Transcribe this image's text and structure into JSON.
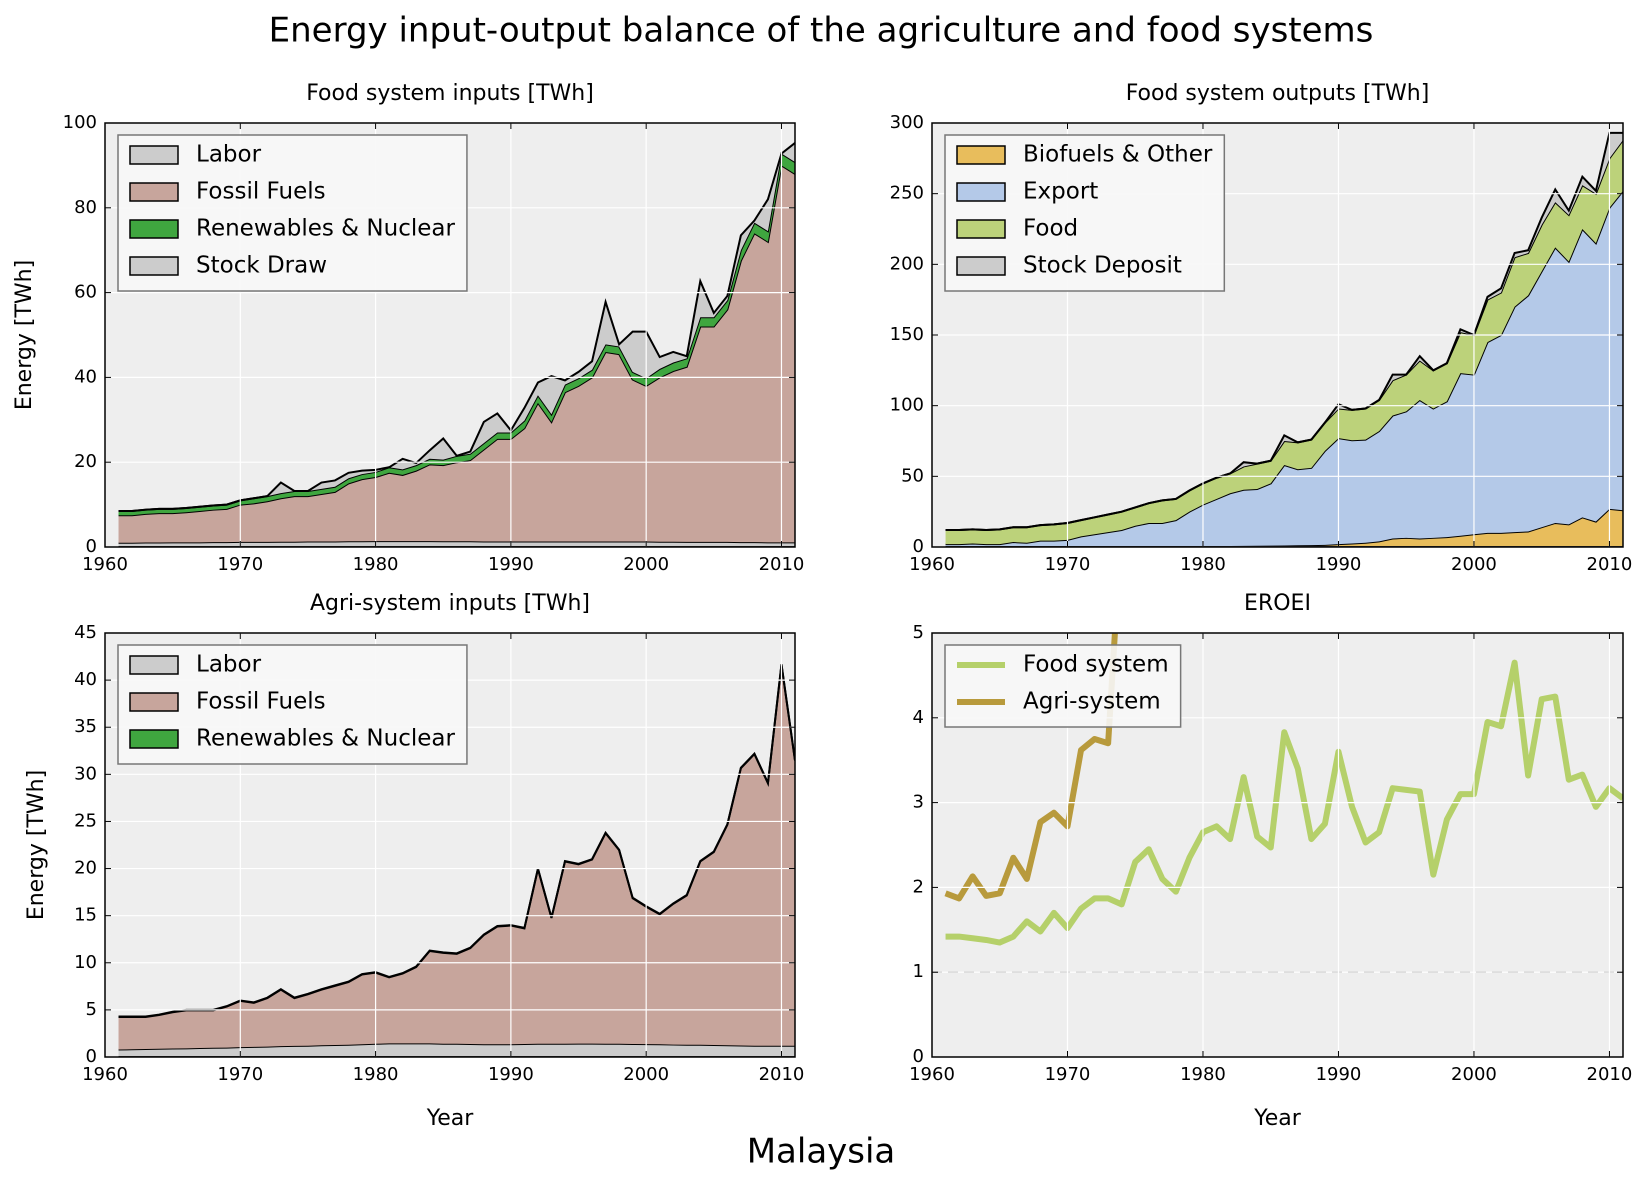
{
  "title": "Energy input-output balance of the agriculture and food systems",
  "country": "Malaysia",
  "chart_data": [
    {
      "type": "area",
      "title": "Food system inputs [TWh]",
      "ylabel": "Energy [TWh]",
      "legend": "upper left",
      "grid": true,
      "x": [
        1961,
        1962,
        1963,
        1964,
        1965,
        1966,
        1967,
        1968,
        1969,
        1970,
        1971,
        1972,
        1973,
        1974,
        1975,
        1976,
        1977,
        1978,
        1979,
        1980,
        1981,
        1982,
        1983,
        1984,
        1985,
        1986,
        1987,
        1988,
        1989,
        1990,
        1991,
        1992,
        1993,
        1994,
        1995,
        1996,
        1997,
        1998,
        1999,
        2000,
        2001,
        2002,
        2003,
        2004,
        2005,
        2006,
        2007,
        2008,
        2009,
        2010,
        2011
      ],
      "xlim": [
        1960,
        2011
      ],
      "xticks": [
        1960,
        1970,
        1980,
        1990,
        2000,
        2010
      ],
      "ylim": [
        0,
        100
      ],
      "yticks": [
        0,
        20,
        40,
        60,
        80,
        100
      ],
      "series": [
        {
          "name": "Labor",
          "color": "#cccccc",
          "values": [
            1.0,
            1.0,
            1.05,
            1.05,
            1.1,
            1.1,
            1.1,
            1.15,
            1.15,
            1.2,
            1.2,
            1.2,
            1.25,
            1.25,
            1.3,
            1.3,
            1.3,
            1.35,
            1.35,
            1.4,
            1.4,
            1.4,
            1.4,
            1.4,
            1.35,
            1.35,
            1.35,
            1.3,
            1.3,
            1.3,
            1.3,
            1.3,
            1.3,
            1.3,
            1.3,
            1.3,
            1.3,
            1.3,
            1.3,
            1.3,
            1.25,
            1.25,
            1.2,
            1.2,
            1.2,
            1.2,
            1.15,
            1.15,
            1.1,
            1.1,
            1.1
          ]
        },
        {
          "name": "Fossil Fuels",
          "color": "#c7a59c",
          "values": [
            6.5,
            6.5,
            6.75,
            6.95,
            6.9,
            7.1,
            7.4,
            7.65,
            7.85,
            8.8,
            9.1,
            9.6,
            10.25,
            10.75,
            10.7,
            11.2,
            11.7,
            13.65,
            14.65,
            15.1,
            16.1,
            15.6,
            16.6,
            18.1,
            17.95,
            18.65,
            19.15,
            21.7,
            24.2,
            24.2,
            26.7,
            32.7,
            28.2,
            35.2,
            36.7,
            38.7,
            44.7,
            44.2,
            38.2,
            36.7,
            38.75,
            40.25,
            41.3,
            50.8,
            50.8,
            54.8,
            66.35,
            72.85,
            70.9,
            88.9,
            86.9
          ]
        },
        {
          "name": "Renewables & Nuclear",
          "color": "#3fa63f",
          "values": [
            1,
            1,
            1,
            1,
            1,
            1,
            1,
            1,
            1,
            1,
            1.2,
            1.2,
            1.2,
            1.2,
            1.2,
            1.2,
            1.2,
            1.2,
            1.2,
            1.2,
            1.3,
            1.3,
            1.3,
            1.3,
            1.3,
            1.5,
            1.5,
            1.5,
            1.5,
            1.5,
            1.8,
            1.8,
            1.8,
            1.8,
            1.8,
            1.8,
            1.8,
            1.8,
            1.8,
            1.8,
            2,
            2,
            2,
            2.2,
            2.2,
            2.2,
            2.5,
            2.5,
            2.5,
            2.8,
            2.8
          ]
        },
        {
          "name": "Stock Draw",
          "color": "#cccccc",
          "values": [
            0,
            0,
            0,
            0,
            0,
            0,
            0,
            0,
            0,
            0,
            0,
            0,
            2.5,
            0,
            0,
            1.5,
            1.5,
            1.3,
            0.8,
            0.5,
            0,
            2.5,
            0.5,
            2,
            5,
            0,
            0.5,
            5,
            4.5,
            0.5,
            3,
            3,
            9,
            1,
            1.5,
            2,
            10,
            0.5,
            9.5,
            11,
            2.8,
            2.5,
            0.5,
            8.5,
            1,
            1,
            3.5,
            0.5,
            7.5,
            0,
            4.5
          ]
        }
      ]
    },
    {
      "type": "area",
      "title": "Food system outputs [TWh]",
      "legend": "upper left",
      "grid": true,
      "x": [
        1961,
        1962,
        1963,
        1964,
        1965,
        1966,
        1967,
        1968,
        1969,
        1970,
        1971,
        1972,
        1973,
        1974,
        1975,
        1976,
        1977,
        1978,
        1979,
        1980,
        1981,
        1982,
        1983,
        1984,
        1985,
        1986,
        1987,
        1988,
        1989,
        1990,
        1991,
        1992,
        1993,
        1994,
        1995,
        1996,
        1997,
        1998,
        1999,
        2000,
        2001,
        2002,
        2003,
        2004,
        2005,
        2006,
        2007,
        2008,
        2009,
        2010,
        2011
      ],
      "xlim": [
        1960,
        2011
      ],
      "xticks": [
        1960,
        1970,
        1980,
        1990,
        2000,
        2010
      ],
      "ylim": [
        0,
        300
      ],
      "yticks": [
        0,
        50,
        100,
        150,
        200,
        250,
        300
      ],
      "series": [
        {
          "name": "Biofuels & Other",
          "color": "#e8bd5c",
          "values": [
            0.2,
            0.2,
            0.2,
            0.2,
            0.2,
            0.3,
            0.3,
            0.3,
            0.3,
            0.3,
            0.3,
            0.3,
            0.3,
            0.4,
            0.4,
            0.4,
            0.4,
            0.4,
            0.5,
            0.5,
            0.6,
            0.7,
            0.8,
            0.9,
            1.0,
            1.1,
            1.2,
            1.3,
            1.5,
            2,
            2.5,
            3,
            4,
            6,
            6.5,
            6,
            6.5,
            7,
            8,
            9,
            10,
            10,
            10.5,
            11,
            14,
            17,
            16,
            21,
            18,
            27,
            26
          ]
        },
        {
          "name": "Export",
          "color": "#b4c9e8",
          "values": [
            1.8,
            1.8,
            2.3,
            1.8,
            1.8,
            3.2,
            2.7,
            4.2,
            4.2,
            4.7,
            7.2,
            8.7,
            10.2,
            11.6,
            14.6,
            16.6,
            16.6,
            18.6,
            24.5,
            29.5,
            33.4,
            37.3,
            39.7,
            40.1,
            44,
            56.9,
            53.8,
            54.7,
            66.5,
            75,
            73,
            73,
            78,
            87,
            89.5,
            98,
            91.5,
            96,
            115,
            113,
            135,
            140,
            159.5,
            167,
            181,
            195,
            186,
            204,
            197,
            213,
            226
          ]
        },
        {
          "name": "Food",
          "color": "#bcd27a",
          "values": [
            10,
            10,
            10,
            10,
            10.5,
            10.5,
            11,
            11,
            11.5,
            12,
            11.5,
            12,
            12.5,
            13,
            13,
            14,
            16,
            15,
            15,
            15,
            15,
            14,
            16.5,
            18,
            16,
            17,
            19,
            20,
            20,
            21,
            21.5,
            22,
            22,
            25,
            26,
            28,
            27,
            27,
            29,
            28,
            30,
            30,
            35,
            30,
            33,
            32,
            33,
            31,
            35,
            35,
            36
          ]
        },
        {
          "name": "Stock Deposit",
          "color": "#cccccc",
          "values": [
            0,
            0,
            0,
            0,
            0,
            0,
            0,
            0,
            0,
            0,
            0,
            0,
            0,
            0,
            0,
            0,
            0,
            0,
            0,
            0,
            0,
            0,
            3,
            0,
            0,
            4,
            0,
            0,
            0,
            3,
            0,
            0,
            0,
            4,
            0,
            3,
            0,
            0,
            2,
            0,
            2,
            3,
            3,
            2,
            5,
            9,
            3,
            6,
            2,
            18,
            5
          ]
        }
      ]
    },
    {
      "type": "area",
      "title": "Agri-system inputs [TWh]",
      "ylabel": "Energy [TWh]",
      "xlabel": "Year",
      "legend": "upper left",
      "grid": true,
      "x": [
        1961,
        1962,
        1963,
        1964,
        1965,
        1966,
        1967,
        1968,
        1969,
        1970,
        1971,
        1972,
        1973,
        1974,
        1975,
        1976,
        1977,
        1978,
        1979,
        1980,
        1981,
        1982,
        1983,
        1984,
        1985,
        1986,
        1987,
        1988,
        1989,
        1990,
        1991,
        1992,
        1993,
        1994,
        1995,
        1996,
        1997,
        1998,
        1999,
        2000,
        2001,
        2002,
        2003,
        2004,
        2005,
        2006,
        2007,
        2008,
        2009,
        2010,
        2011
      ],
      "xlim": [
        1960,
        2011
      ],
      "xticks": [
        1960,
        1970,
        1980,
        1990,
        2000,
        2010
      ],
      "ylim": [
        0,
        45
      ],
      "yticks": [
        0,
        5,
        10,
        15,
        20,
        25,
        30,
        35,
        40,
        45
      ],
      "series": [
        {
          "name": "Labor",
          "color": "#cccccc",
          "values": [
            0.8,
            0.82,
            0.85,
            0.88,
            0.9,
            0.92,
            0.95,
            0.98,
            1.0,
            1.05,
            1.08,
            1.1,
            1.15,
            1.18,
            1.2,
            1.25,
            1.28,
            1.3,
            1.35,
            1.4,
            1.45,
            1.45,
            1.45,
            1.45,
            1.4,
            1.4,
            1.38,
            1.35,
            1.35,
            1.35,
            1.38,
            1.4,
            1.4,
            1.4,
            1.42,
            1.42,
            1.4,
            1.4,
            1.38,
            1.36,
            1.35,
            1.32,
            1.3,
            1.3,
            1.28,
            1.25,
            1.22,
            1.2,
            1.2,
            1.2,
            1.2
          ]
        },
        {
          "name": "Fossil Fuels",
          "color": "#c7a59c",
          "values": [
            3.45,
            3.43,
            3.4,
            3.57,
            3.85,
            4.03,
            4.0,
            3.97,
            4.35,
            4.9,
            4.67,
            5.15,
            6.0,
            5.07,
            5.45,
            5.9,
            6.27,
            6.65,
            7.4,
            7.55,
            7.0,
            7.4,
            8.1,
            9.8,
            9.65,
            9.55,
            10.17,
            11.6,
            12.5,
            12.6,
            12.27,
            18.55,
            13.35,
            19.35,
            19.03,
            19.53,
            22.35,
            20.55,
            15.47,
            14.59,
            13.8,
            14.93,
            15.85,
            19.45,
            20.47,
            23.4,
            29.43,
            30.95,
            27.85,
            40.45,
            30.25
          ]
        },
        {
          "name": "Renewables & Nuclear",
          "color": "#3fa63f",
          "values": [
            0.05,
            0.05,
            0.05,
            0.05,
            0.05,
            0.05,
            0.05,
            0.05,
            0.05,
            0.05,
            0.05,
            0.05,
            0.05,
            0.05,
            0.05,
            0.05,
            0.05,
            0.05,
            0.05,
            0.05,
            0.05,
            0.05,
            0.05,
            0.05,
            0.05,
            0.05,
            0.05,
            0.05,
            0.05,
            0.05,
            0.05,
            0.05,
            0.05,
            0.05,
            0.05,
            0.05,
            0.05,
            0.05,
            0.05,
            0.05,
            0.05,
            0.05,
            0.05,
            0.05,
            0.05,
            0.05,
            0.05,
            0.05,
            0.05,
            0.05,
            0.05
          ]
        }
      ]
    },
    {
      "type": "line",
      "title": "EROEI",
      "xlabel": "Year",
      "legend": "upper left",
      "grid": true,
      "hline": 1,
      "x": [
        1961,
        1962,
        1963,
        1964,
        1965,
        1966,
        1967,
        1968,
        1969,
        1970,
        1971,
        1972,
        1973,
        1974,
        1975,
        1976,
        1977,
        1978,
        1979,
        1980,
        1981,
        1982,
        1983,
        1984,
        1985,
        1986,
        1987,
        1988,
        1989,
        1990,
        1991,
        1992,
        1993,
        1994,
        1995,
        1996,
        1997,
        1998,
        1999,
        2000,
        2001,
        2002,
        2003,
        2004,
        2005,
        2006,
        2007,
        2008,
        2009,
        2010,
        2011
      ],
      "xlim": [
        1960,
        2011
      ],
      "xticks": [
        1960,
        1970,
        1980,
        1990,
        2000,
        2010
      ],
      "ylim": [
        0,
        5
      ],
      "yticks": [
        0,
        1,
        2,
        3,
        4,
        5
      ],
      "series": [
        {
          "name": "Food system",
          "color": "#b5d06a",
          "values": [
            1.42,
            1.42,
            1.4,
            1.38,
            1.35,
            1.42,
            1.6,
            1.48,
            1.7,
            1.52,
            1.75,
            1.87,
            1.87,
            1.8,
            2.3,
            2.45,
            2.1,
            1.95,
            2.35,
            2.65,
            2.72,
            2.57,
            3.3,
            2.6,
            2.47,
            3.83,
            3.4,
            2.57,
            2.75,
            3.6,
            2.95,
            2.53,
            2.65,
            3.17,
            3.15,
            3.13,
            2.15,
            2.8,
            3.1,
            3.1,
            3.95,
            3.9,
            4.65,
            3.32,
            4.22,
            4.25,
            3.27,
            3.33,
            2.95,
            3.17,
            3.05
          ]
        },
        {
          "name": "Agri-system",
          "color": "#b89a3c",
          "values": [
            1.93,
            1.87,
            2.13,
            1.9,
            1.93,
            2.35,
            2.1,
            2.77,
            2.88,
            2.72,
            3.62,
            3.75,
            3.7,
            6.3,
            null,
            null,
            null,
            null,
            null,
            null,
            null,
            null,
            null,
            null,
            null,
            null,
            null,
            null,
            null,
            null,
            null,
            null,
            null,
            null,
            null,
            null,
            null,
            null,
            null,
            null,
            null,
            null,
            null,
            null,
            null,
            null,
            null,
            null,
            null,
            null,
            null
          ]
        }
      ]
    }
  ]
}
